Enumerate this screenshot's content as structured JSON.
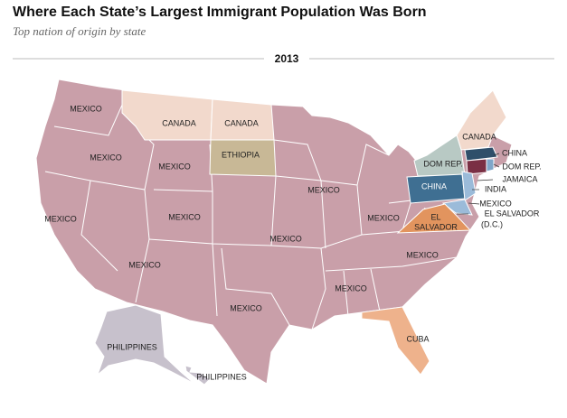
{
  "header": {
    "title": "Where Each State’s Largest Immigrant Population Was Born",
    "subtitle": "Top nation of origin by state"
  },
  "year": "2013",
  "labels": [
    "MEXICO",
    "CANADA",
    "CANADA",
    "CANADA",
    "MEXICO",
    "MEXICO",
    "ETHIOPIA",
    "DOM REP.",
    "CHINA",
    "DOM REP.",
    "JAMAICA",
    "CHINA",
    "INDIA",
    "MEXICO",
    "MEXICO",
    "MEXICO",
    "MEXICO",
    "MEXICO",
    "EL SALVADOR",
    "(D.C.)",
    "EL",
    "SALVADOR",
    "MEXICO",
    "MEXICO",
    "MEXICO",
    "MEXICO",
    "MEXICO",
    "CUBA",
    "PHILIPPINES",
    "PHILIPPINES"
  ]
}
